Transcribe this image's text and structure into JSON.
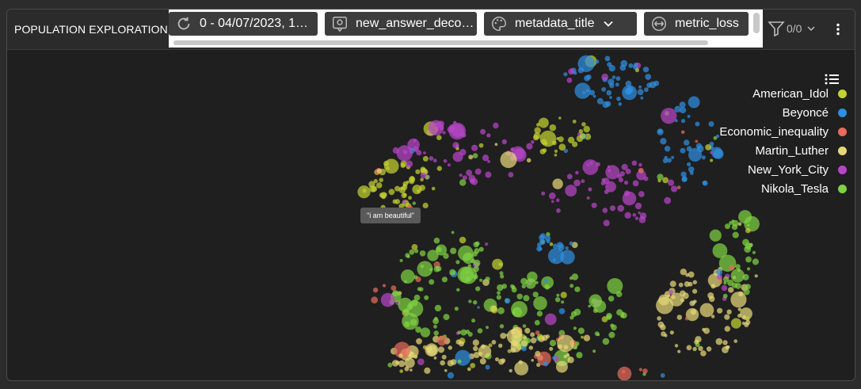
{
  "panel": {
    "title": "POPULATION EXPLORATION"
  },
  "chips": [
    {
      "label": "0 - 04/07/2023, 1…",
      "icon": "refresh-icon"
    },
    {
      "label": "new_answer_deco…",
      "icon": "badge-icon"
    },
    {
      "label": "metadata_title",
      "icon": "palette-icon"
    },
    {
      "label": "metric_loss",
      "icon": "resize-icon"
    }
  ],
  "filter": {
    "count": "0/0",
    "icon": "filter-icon"
  },
  "tooltip": {
    "text": "\"i am beautiful\""
  },
  "legend": {
    "icon": "list-icon",
    "items": [
      {
        "label": "American_Idol",
        "color": "#c4d132"
      },
      {
        "label": "Beyoncé",
        "color": "#2f8fe0"
      },
      {
        "label": "Economic_inequality",
        "color": "#e86b5c"
      },
      {
        "label": "Martin_Luther",
        "color": "#e6d879"
      },
      {
        "label": "New_York_City",
        "color": "#b845c9"
      },
      {
        "label": "Nikola_Tesla",
        "color": "#7fd242"
      }
    ]
  }
}
